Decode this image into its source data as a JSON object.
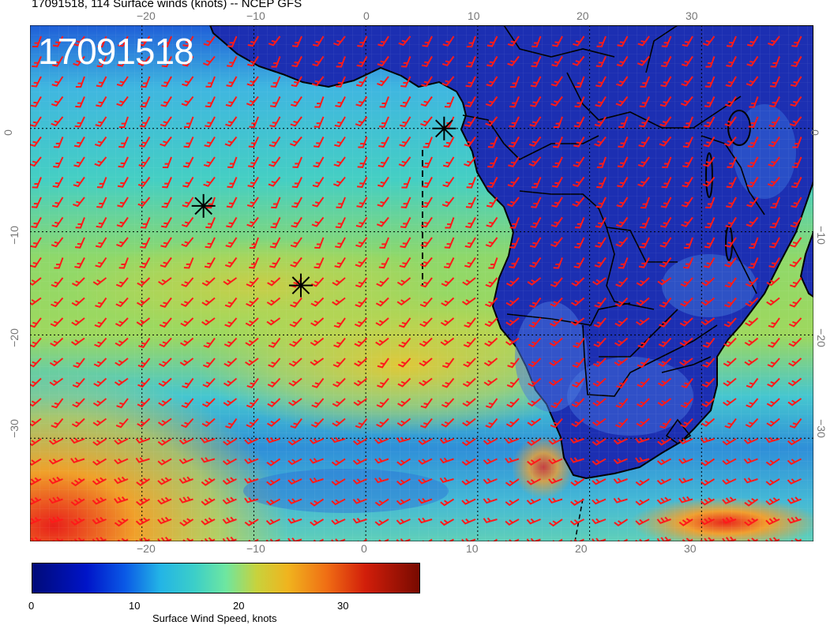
{
  "header": {
    "title": "17091518, 114 Surface winds (knots) -- NCEP GFS",
    "timestamp_stamp": "17091518"
  },
  "map": {
    "lon_range": [
      -30,
      40
    ],
    "lat_range": [
      -40,
      10
    ],
    "grid_lons": [
      -20,
      -10,
      0,
      10,
      20,
      30
    ],
    "grid_lats": [
      0,
      -10,
      -20,
      -30
    ],
    "top_axis_labels": [
      "−20",
      "−10",
      "0",
      "10",
      "20",
      "30"
    ],
    "bottom_axis_labels": [
      "−20",
      "−10",
      "0",
      "10",
      "20",
      "30"
    ],
    "left_axis_labels": [
      "0",
      "−10",
      "−20",
      "−30"
    ],
    "right_axis_labels": [
      "0",
      "−10",
      "−20",
      "−30"
    ],
    "storm_markers": [
      "storm-marker",
      "storm-marker",
      "storm-marker"
    ],
    "colors": {
      "land": "#1c2fb2",
      "ocean_mid": "#39c2d8",
      "ocean_strong": "#d8c83a",
      "wind_barb": "#ff1a1a"
    }
  },
  "colorbar": {
    "ticks": [
      "0",
      "10",
      "20",
      "30"
    ],
    "label": "Surface Wind Speed, knots",
    "range": [
      0,
      37
    ]
  }
}
